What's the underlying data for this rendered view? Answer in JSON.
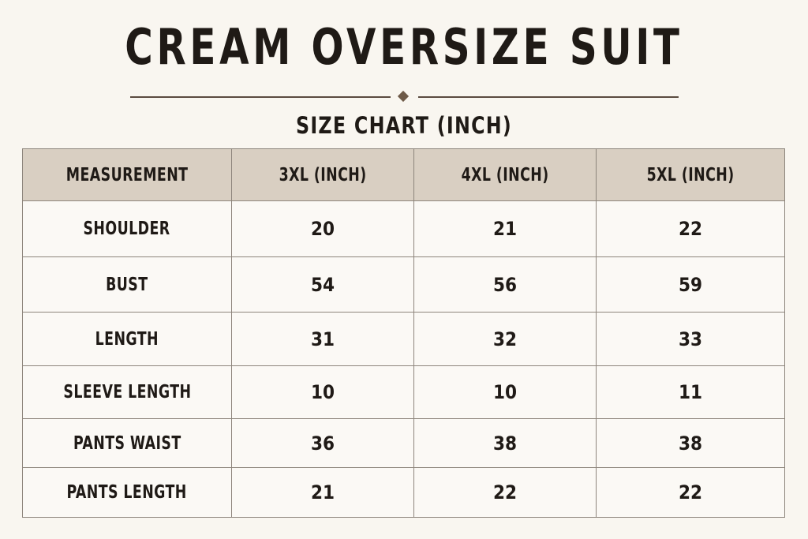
{
  "title": "CREAM OVERSIZE SUIT",
  "subtitle": "SIZE CHART (INCH)",
  "table": {
    "headers": [
      "MEASUREMENT",
      "3XL (INCH)",
      "4XL (INCH)",
      "5XL (INCH)"
    ],
    "rows": [
      {
        "label": "SHOULDER",
        "values": [
          "20",
          "21",
          "22"
        ]
      },
      {
        "label": "BUST",
        "values": [
          "54",
          "56",
          "59"
        ]
      },
      {
        "label": "LENGTH",
        "values": [
          "31",
          "32",
          "33"
        ]
      },
      {
        "label": "SLEEVE LENGTH",
        "values": [
          "10",
          "10",
          "11"
        ]
      },
      {
        "label": "PANTS WAIST",
        "values": [
          "36",
          "38",
          "38"
        ]
      },
      {
        "label": "PANTS LENGTH",
        "values": [
          "21",
          "22",
          "22"
        ]
      }
    ]
  },
  "colors": {
    "background": "#f9f6f0",
    "header_fill": "#d9cfc2",
    "text": "#1f1a16",
    "grid": "#8d857c"
  }
}
